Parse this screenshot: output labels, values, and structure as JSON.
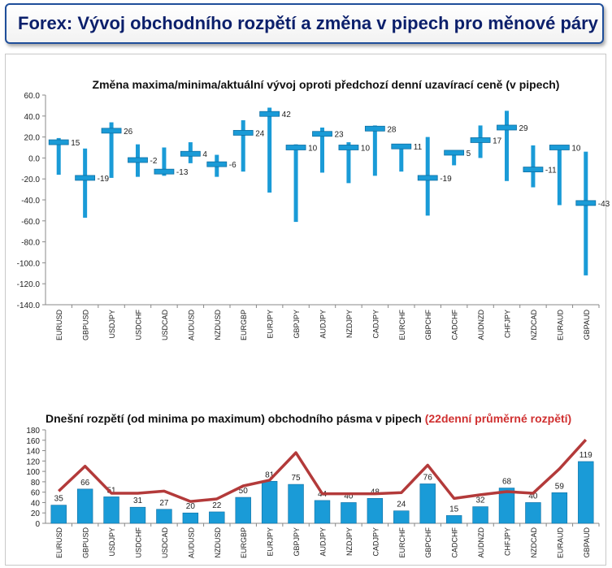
{
  "header": {
    "title": "Forex: Vývoj obchodního rozpětí a změna v pipech pro měnové páry"
  },
  "colors": {
    "bar": "#1a9bd7",
    "bar_dark": "#0e6fa3",
    "line": "#b33a3a",
    "subtitle_red": "#d03030",
    "title_blue": "#0b1f6b"
  },
  "chart_data": [
    {
      "type": "bar",
      "title": "Změna maxima/minima/aktuální vývoj oproti předchozí denní uzavírací ceně (v pipech)",
      "categories": [
        "EURUSD",
        "GBPUSD",
        "USDJPY",
        "USDCHF",
        "USDCAD",
        "AUDUSD",
        "NZDUSD",
        "EURGBP",
        "EURJPY",
        "GBPJPY",
        "AUDJPY",
        "NZDJPY",
        "CADJPY",
        "EURCHF",
        "GBPCHF",
        "CADCHF",
        "AUDNZD",
        "CHFJPY",
        "NZDCAD",
        "EURAUD",
        "GBPAUD"
      ],
      "max": [
        19,
        9,
        34,
        13,
        10,
        15,
        3,
        36,
        48,
        13,
        29,
        15,
        31,
        13,
        20,
        7,
        31,
        45,
        12,
        12,
        6
      ],
      "min": [
        -16,
        -57,
        -19,
        -18,
        -17,
        -5,
        -18,
        -13,
        -33,
        -61,
        -14,
        -24,
        -17,
        -13,
        -55,
        -7,
        0,
        -22,
        -28,
        -45,
        -112
      ],
      "current": [
        15,
        -19,
        26,
        -2,
        -13,
        4,
        -6,
        24,
        42,
        10,
        23,
        10,
        28,
        11,
        -19,
        5,
        17,
        29,
        -11,
        10,
        -43
      ],
      "ylim": [
        -140,
        60
      ],
      "yticks": [
        "60.0",
        "40.0",
        "20.0",
        "0.0",
        "-20.0",
        "-40.0",
        "-60.0",
        "-80.0",
        "-100.0",
        "-120.0",
        "-140.0"
      ],
      "legend": "none",
      "grid": false
    },
    {
      "type": "bar",
      "title": "Dnešní rozpětí (od minima po maximum) obchodního pásma v pipech",
      "title_suffix": "(22denní průměrné rozpětí)",
      "categories": [
        "EURUSD",
        "GBPUSD",
        "USDJPY",
        "USDCHF",
        "USDCAD",
        "AUDUSD",
        "NZDUSD",
        "EURGBP",
        "EURJPY",
        "GBPJPY",
        "AUDJPY",
        "NZDJPY",
        "CADJPY",
        "EURCHF",
        "GBPCHF",
        "CADCHF",
        "AUDNZD",
        "CHFJPY",
        "NZDCAD",
        "EURAUD",
        "GBPAUD"
      ],
      "series": [
        {
          "type": "bar",
          "values": [
            35,
            66,
            51,
            31,
            27,
            20,
            22,
            50,
            81,
            75,
            44,
            40,
            48,
            24,
            76,
            15,
            32,
            68,
            40,
            59,
            119
          ]
        },
        {
          "type": "line",
          "values": [
            62,
            110,
            58,
            58,
            62,
            42,
            47,
            72,
            83,
            136,
            57,
            57,
            57,
            59,
            112,
            48,
            55,
            61,
            58,
            105,
            161
          ]
        }
      ],
      "ylim": [
        0,
        180
      ],
      "yticks": [
        "0",
        "20",
        "40",
        "60",
        "80",
        "100",
        "120",
        "140",
        "160",
        "180"
      ],
      "legend": "none",
      "grid": false
    }
  ]
}
